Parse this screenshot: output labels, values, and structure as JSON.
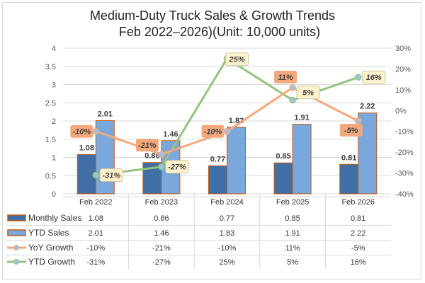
{
  "chart_data": {
    "type": "bar",
    "title_line1": "Medium-Duty Truck Sales & Growth Trends",
    "title_line2": "Feb 2022–2026)(Unit: 10,000 units)",
    "categories": [
      "Feb 2022",
      "Feb 2023",
      "Feb 2024",
      "Feb 2025",
      "Feb 2026"
    ],
    "left_axis": {
      "range": [
        0,
        4
      ],
      "ticks": [
        "0",
        "0.5",
        "1",
        "1.5",
        "2",
        "2.5",
        "3",
        "3.5",
        "4"
      ],
      "tick_values": [
        0,
        0.5,
        1,
        1.5,
        2,
        2.5,
        3,
        3.5,
        4
      ]
    },
    "right_axis": {
      "range": [
        -40,
        30
      ],
      "ticks": [
        "-40%",
        "-30%",
        "-20%",
        "-10%",
        "0%",
        "10%",
        "20%",
        "30%"
      ],
      "tick_values": [
        -40,
        -30,
        -20,
        -10,
        0,
        10,
        20,
        30
      ]
    },
    "grid": true,
    "series": [
      {
        "name": "Monthly Sales",
        "kind": "bar",
        "axis": "left",
        "color": "#3f6fa5",
        "values": [
          1.08,
          0.86,
          0.77,
          0.85,
          0.81
        ],
        "labels": [
          "1.08",
          "0.86",
          "0.77",
          "0.85",
          "0.81"
        ]
      },
      {
        "name": "YTD Sales",
        "kind": "bar",
        "axis": "left",
        "color": "#7aa8dc",
        "values": [
          2.01,
          1.46,
          1.83,
          1.91,
          2.22
        ],
        "labels": [
          "2.01",
          "1.46",
          "1.83",
          "1.91",
          "2.22"
        ]
      },
      {
        "name": "YoY Growth",
        "kind": "line",
        "axis": "right",
        "color": "#f4a87c",
        "values": [
          -10,
          -21,
          -10,
          11,
          -5
        ],
        "labels": [
          "-10%",
          "-21%",
          "-10%",
          "11%",
          "-5%"
        ]
      },
      {
        "name": "YTD Growth",
        "kind": "line",
        "axis": "right",
        "color": "#93c47d",
        "values": [
          -31,
          -27,
          25,
          5,
          16
        ],
        "labels": [
          "-31%",
          "-27%",
          "25%",
          "5%",
          "16%"
        ]
      }
    ],
    "bar_outline_color": "#c55a11",
    "legend_placement": "data-table"
  }
}
